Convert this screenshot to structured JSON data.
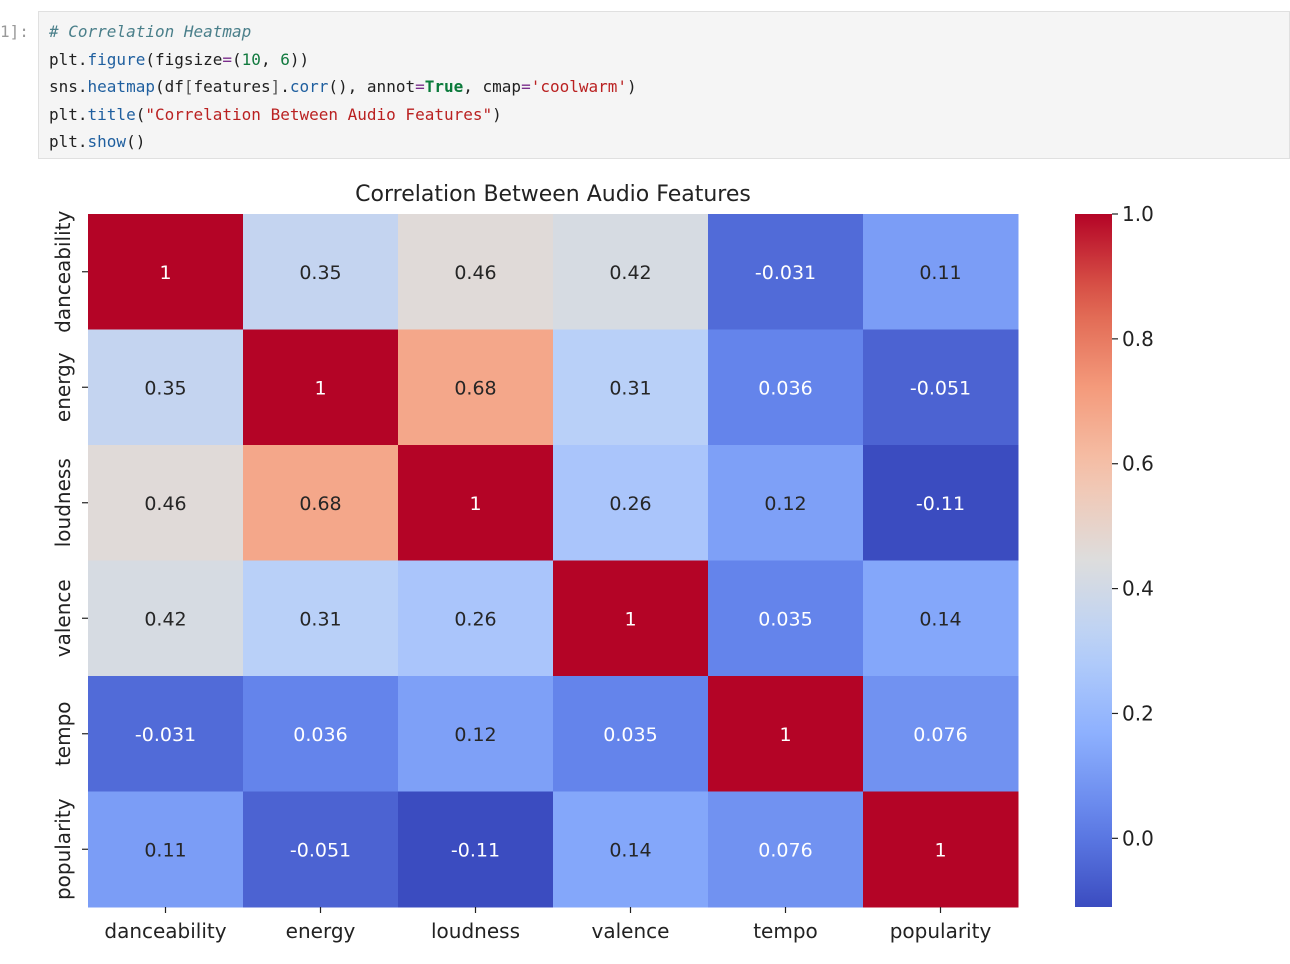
{
  "cell": {
    "prompt": "1]:",
    "code_lines": [
      [
        {
          "t": "# Correlation Heatmap",
          "c": "comment"
        }
      ],
      [
        {
          "t": "plt.",
          "c": ""
        },
        {
          "t": "figure",
          "c": "attr"
        },
        {
          "t": "(figsize",
          "c": ""
        },
        {
          "t": "=",
          "c": "op"
        },
        {
          "t": "(",
          "c": ""
        },
        {
          "t": "10",
          "c": "num"
        },
        {
          "t": ", ",
          "c": ""
        },
        {
          "t": "6",
          "c": "num"
        },
        {
          "t": "))",
          "c": ""
        }
      ],
      [
        {
          "t": "sns.",
          "c": ""
        },
        {
          "t": "heatmap",
          "c": "attr"
        },
        {
          "t": "(df",
          "c": ""
        },
        {
          "t": "[",
          "c": "punct"
        },
        {
          "t": "features",
          "c": ""
        },
        {
          "t": "]",
          "c": "punct"
        },
        {
          "t": ".",
          "c": ""
        },
        {
          "t": "corr",
          "c": "attr"
        },
        {
          "t": "(), annot",
          "c": ""
        },
        {
          "t": "=",
          "c": "op"
        },
        {
          "t": "True",
          "c": "kw"
        },
        {
          "t": ", cmap",
          "c": ""
        },
        {
          "t": "=",
          "c": "op"
        },
        {
          "t": "'coolwarm'",
          "c": "str"
        },
        {
          "t": ")",
          "c": ""
        }
      ],
      [
        {
          "t": "plt.",
          "c": ""
        },
        {
          "t": "title",
          "c": "attr"
        },
        {
          "t": "(",
          "c": ""
        },
        {
          "t": "\"Correlation Between Audio Features\"",
          "c": "str"
        },
        {
          "t": ")",
          "c": ""
        }
      ],
      [
        {
          "t": "plt.",
          "c": ""
        },
        {
          "t": "show",
          "c": "attr"
        },
        {
          "t": "()",
          "c": ""
        }
      ]
    ]
  },
  "chart_data": {
    "type": "heatmap",
    "title": "Correlation Between Audio Features",
    "x_labels": [
      "danceability",
      "energy",
      "loudness",
      "valence",
      "tempo",
      "popularity"
    ],
    "y_labels": [
      "danceability",
      "energy",
      "loudness",
      "valence",
      "tempo",
      "popularity"
    ],
    "values": [
      [
        1,
        0.35,
        0.46,
        0.42,
        -0.031,
        0.11
      ],
      [
        0.35,
        1,
        0.68,
        0.31,
        0.036,
        -0.051
      ],
      [
        0.46,
        0.68,
        1,
        0.26,
        0.12,
        -0.11
      ],
      [
        0.42,
        0.31,
        0.26,
        1,
        0.035,
        0.14
      ],
      [
        -0.031,
        0.036,
        0.12,
        0.035,
        1,
        0.076
      ],
      [
        0.11,
        -0.051,
        -0.11,
        0.14,
        0.076,
        1
      ]
    ],
    "annotations": [
      [
        "1",
        "0.35",
        "0.46",
        "0.42",
        "-0.031",
        "0.11"
      ],
      [
        "0.35",
        "1",
        "0.68",
        "0.31",
        "0.036",
        "-0.051"
      ],
      [
        "0.46",
        "0.68",
        "1",
        "0.26",
        "0.12",
        "-0.11"
      ],
      [
        "0.42",
        "0.31",
        "0.26",
        "1",
        "0.035",
        "0.14"
      ],
      [
        "-0.031",
        "0.036",
        "0.12",
        "0.035",
        "1",
        "0.076"
      ],
      [
        "0.11",
        "-0.051",
        "-0.11",
        "0.14",
        "0.076",
        "1"
      ]
    ],
    "colormap": "coolwarm",
    "vmin": -0.11,
    "vmax": 1.0,
    "colorbar_ticks": [
      1.0,
      0.8,
      0.6,
      0.4,
      0.2,
      0.0
    ],
    "colorbar_tick_labels": [
      "1.0",
      "0.8",
      "0.6",
      "0.4",
      "0.2",
      "0.0"
    ]
  }
}
